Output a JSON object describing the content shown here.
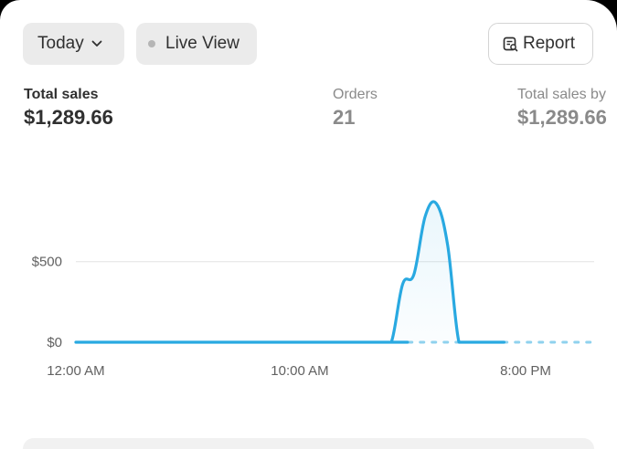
{
  "toolbar": {
    "date_label": "Today",
    "live_view_label": "Live View",
    "report_label": "Report"
  },
  "metrics": [
    {
      "label": "Total sales",
      "value": "$1,289.66"
    },
    {
      "label": "Orders",
      "value": "21"
    },
    {
      "label": "Total sales by",
      "value": "$1,289.66"
    }
  ],
  "colors": {
    "accent_line": "#29a9e1",
    "muted_text": "#8a8a8a",
    "pill_bg": "#ebebeb"
  },
  "icons": {
    "date_chevron": "chevron-down-icon",
    "live_dot": "status-dot-icon",
    "report": "report-icon"
  },
  "chart_data": {
    "type": "area",
    "x_tick_labels": [
      "12:00 AM",
      "10:00 AM",
      "8:00 PM"
    ],
    "y_tick_labels": [
      "$0",
      "$500"
    ],
    "y_ticks": [
      0,
      500
    ],
    "ylim": [
      0,
      870
    ],
    "x": [
      0,
      13.5,
      14.0,
      14.5,
      15.0,
      15.5,
      16.0,
      16.5,
      17.0,
      17.5,
      18.0,
      18.5,
      19.0,
      19.5,
      20.0
    ],
    "values": [
      0,
      0,
      0,
      360,
      420,
      780,
      860,
      600,
      0,
      0,
      0,
      0,
      0,
      0,
      0
    ],
    "current_hour": 19.0,
    "grid": true,
    "legend": "none"
  }
}
